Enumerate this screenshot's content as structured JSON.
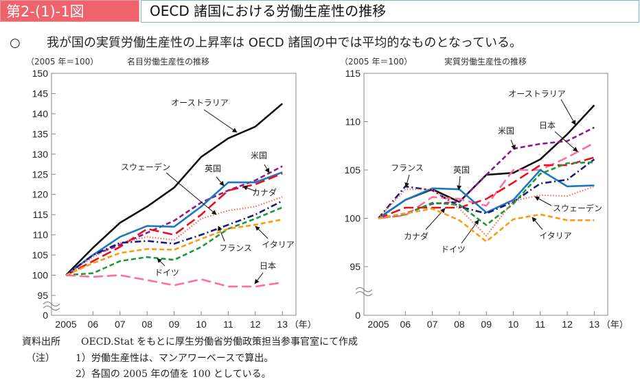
{
  "header": {
    "figure_number": "第2-(1)-1図",
    "title": "OECD 諸国における労働生産性の推移"
  },
  "summary": {
    "bullet": "○",
    "text": "我が国の実質労働生産性の上昇率は OECD 諸国の中では平均的なものとなっている。"
  },
  "footer": {
    "source_label": "資料出所",
    "source_text": "OECD.Stat をもとに厚生労働省労働政策担当参事官室にて作成",
    "note_label": "（注）",
    "notes": [
      "1）労働生産性は、マンアワーベースで算出。",
      "2）各国の 2005 年の値を 100 としている。"
    ]
  },
  "chart_data": [
    {
      "type": "line",
      "title": "名目労働生産性の推移",
      "unit_label": "（2005 年＝100）",
      "xlabel": "（年）",
      "categories": [
        "2005",
        "06",
        "07",
        "08",
        "09",
        "10",
        "11",
        "12",
        "13"
      ],
      "yticks": [
        0,
        95,
        100,
        105,
        110,
        115,
        120,
        125,
        130,
        135,
        140,
        145,
        150
      ],
      "ylim": [
        95,
        150
      ],
      "axis_break": true,
      "series": [
        {
          "name": "オーストラリア",
          "color": "#111111",
          "style": "solid",
          "values": [
            100,
            106.8,
            113,
            117,
            121.7,
            129.3,
            133.9,
            136.8,
            142.5
          ]
        },
        {
          "name": "米国",
          "color": "#8b1a8b",
          "style": "dash",
          "values": [
            100,
            105,
            107.5,
            110.5,
            113.5,
            118,
            121,
            123.5,
            127
          ]
        },
        {
          "name": "英国",
          "color": "#1a78c0",
          "style": "solid",
          "values": [
            100,
            105,
            109.5,
            112.2,
            112,
            117,
            123,
            123,
            125.5
          ]
        },
        {
          "name": "カナダ",
          "color": "#e8101c",
          "style": "longdash",
          "values": [
            100,
            103.5,
            107,
            111.5,
            110,
            115,
            121,
            122.5,
            125.2
          ]
        },
        {
          "name": "スウェーデン",
          "color": "#ff6a4a",
          "style": "dot",
          "values": [
            100,
            104.5,
            108,
            109.5,
            108.7,
            114,
            116,
            117,
            119.4
          ]
        },
        {
          "name": "フランス",
          "color": "#1a1a80",
          "style": "dashdot",
          "values": [
            100,
            105,
            108,
            108.5,
            107.8,
            110,
            112.5,
            115,
            118.4
          ]
        },
        {
          "name": "ドイツ",
          "color": "#1a9a3a",
          "style": "dash",
          "values": [
            100,
            100.5,
            103.5,
            104.5,
            103.8,
            107,
            111.5,
            114,
            116.8
          ]
        },
        {
          "name": "イタリア",
          "color": "#ff9a10",
          "style": "dash",
          "values": [
            100,
            103,
            105.5,
            106.5,
            106.3,
            109,
            111.5,
            112.5,
            113.8
          ]
        },
        {
          "name": "日本",
          "color": "#ff6f9a",
          "style": "longdash",
          "values": [
            100,
            99.6,
            100,
            98.8,
            97.5,
            99,
            97.2,
            97.2,
            98.2
          ]
        }
      ]
    },
    {
      "type": "line",
      "title": "実質労働生産性の推移",
      "unit_label": "（2005 年＝100）",
      "xlabel": "（年）",
      "categories": [
        "2005",
        "06",
        "07",
        "08",
        "09",
        "10",
        "11",
        "12",
        "13"
      ],
      "yticks": [
        0,
        95,
        100,
        105,
        110,
        115
      ],
      "ylim": [
        95,
        115
      ],
      "axis_break": true,
      "series": [
        {
          "name": "オーストラリア",
          "color": "#111111",
          "style": "solid",
          "values": [
            100,
            101.9,
            103,
            101.7,
            104.5,
            104.7,
            106.1,
            108.7,
            111.7
          ]
        },
        {
          "name": "米国",
          "color": "#8b1a8b",
          "style": "dash",
          "values": [
            100,
            100.5,
            101.5,
            101.7,
            104.5,
            107.2,
            107.7,
            108,
            109.4
          ]
        },
        {
          "name": "日本",
          "color": "#ff6f9a",
          "style": "longdash",
          "values": [
            100,
            100.3,
            102.2,
            102,
            101.3,
            105,
            105,
            106.3,
            107.8
          ]
        },
        {
          "name": "カナダ",
          "color": "#e8101c",
          "style": "longdash",
          "values": [
            100,
            101.1,
            101.1,
            101.1,
            102,
            103.7,
            105.5,
            105.5,
            106.3
          ]
        },
        {
          "name": "英国",
          "color": "#1a78c0",
          "style": "solid",
          "values": [
            100,
            101.9,
            103.1,
            103,
            100.6,
            101.9,
            105,
            103.3,
            103.4
          ]
        },
        {
          "name": "フランス",
          "color": "#1a1a80",
          "style": "dashdot",
          "values": [
            100,
            103.3,
            102.9,
            101.2,
            100.5,
            101.7,
            103.6,
            104,
            106.1
          ]
        },
        {
          "name": "ドイツ",
          "color": "#1a9a3a",
          "style": "dash",
          "values": [
            100,
            100.4,
            101.6,
            101.4,
            99.3,
            101.5,
            104.6,
            105.7,
            105.8
          ]
        },
        {
          "name": "スウェーデン",
          "color": "#ff6a4a",
          "style": "dot",
          "values": [
            100,
            103,
            103,
            101,
            98.2,
            101.8,
            102.4,
            102.3,
            103.3
          ]
        },
        {
          "name": "イタリア",
          "color": "#ff9a10",
          "style": "dash",
          "values": [
            100,
            100.5,
            101,
            99.8,
            97.6,
            99.9,
            100.4,
            99.8,
            99.8
          ]
        }
      ]
    }
  ]
}
